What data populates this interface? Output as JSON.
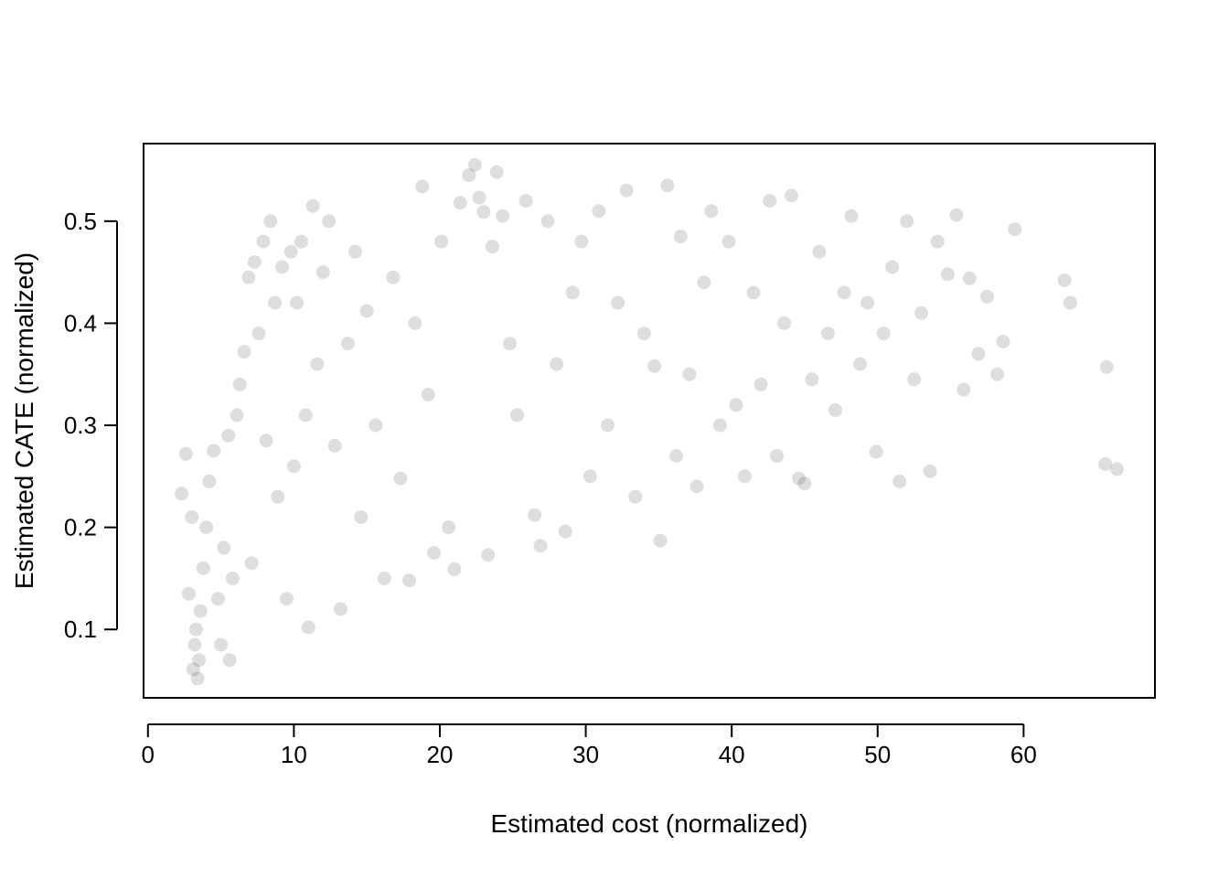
{
  "chart_data": {
    "type": "scatter",
    "title": "",
    "xlabel": "Estimated cost (normalized)",
    "ylabel": "Estimated CATE (normalized)",
    "xlim": [
      -0.3,
      69
    ],
    "ylim": [
      0.033,
      0.576
    ],
    "x_ticks": [
      0,
      10,
      20,
      30,
      40,
      50,
      60
    ],
    "y_ticks": [
      0.1,
      0.2,
      0.3,
      0.4,
      0.5
    ],
    "x_tick_labels": [
      "0",
      "10",
      "20",
      "30",
      "40",
      "50",
      "60"
    ],
    "y_tick_labels": [
      "0.1",
      "0.2",
      "0.3",
      "0.4",
      "0.5"
    ],
    "grid": false,
    "legend": "none",
    "point_color": "#000000",
    "point_opacity": 0.13,
    "series": [
      {
        "points": [
          [
            2.3,
            0.233
          ],
          [
            2.6,
            0.272
          ],
          [
            2.8,
            0.135
          ],
          [
            3.0,
            0.21
          ],
          [
            3.1,
            0.061
          ],
          [
            3.2,
            0.085
          ],
          [
            3.3,
            0.1
          ],
          [
            3.4,
            0.052
          ],
          [
            3.5,
            0.07
          ],
          [
            3.6,
            0.118
          ],
          [
            3.8,
            0.16
          ],
          [
            4.0,
            0.2
          ],
          [
            4.2,
            0.245
          ],
          [
            4.5,
            0.275
          ],
          [
            4.8,
            0.13
          ],
          [
            5.0,
            0.085
          ],
          [
            5.2,
            0.18
          ],
          [
            5.5,
            0.29
          ],
          [
            5.6,
            0.07
          ],
          [
            5.8,
            0.15
          ],
          [
            6.1,
            0.31
          ],
          [
            6.3,
            0.34
          ],
          [
            6.6,
            0.372
          ],
          [
            6.9,
            0.445
          ],
          [
            7.1,
            0.165
          ],
          [
            7.3,
            0.46
          ],
          [
            7.6,
            0.39
          ],
          [
            7.9,
            0.48
          ],
          [
            8.1,
            0.285
          ],
          [
            8.4,
            0.5
          ],
          [
            8.7,
            0.42
          ],
          [
            8.9,
            0.23
          ],
          [
            9.2,
            0.455
          ],
          [
            9.5,
            0.13
          ],
          [
            9.8,
            0.47
          ],
          [
            10.0,
            0.26
          ],
          [
            10.2,
            0.42
          ],
          [
            10.5,
            0.48
          ],
          [
            10.8,
            0.31
          ],
          [
            11.0,
            0.102
          ],
          [
            11.3,
            0.515
          ],
          [
            11.6,
            0.36
          ],
          [
            12.0,
            0.45
          ],
          [
            12.4,
            0.5
          ],
          [
            12.8,
            0.28
          ],
          [
            13.2,
            0.12
          ],
          [
            13.7,
            0.38
          ],
          [
            14.2,
            0.47
          ],
          [
            14.6,
            0.21
          ],
          [
            15.0,
            0.412
          ],
          [
            15.6,
            0.3
          ],
          [
            16.2,
            0.15
          ],
          [
            16.8,
            0.445
          ],
          [
            17.3,
            0.248
          ],
          [
            17.9,
            0.148
          ],
          [
            18.3,
            0.4
          ],
          [
            18.8,
            0.534
          ],
          [
            19.2,
            0.33
          ],
          [
            19.6,
            0.175
          ],
          [
            20.1,
            0.48
          ],
          [
            20.6,
            0.2
          ],
          [
            21.0,
            0.159
          ],
          [
            21.4,
            0.518
          ],
          [
            22.0,
            0.545
          ],
          [
            22.4,
            0.555
          ],
          [
            22.7,
            0.523
          ],
          [
            23.0,
            0.509
          ],
          [
            23.3,
            0.173
          ],
          [
            23.6,
            0.475
          ],
          [
            23.9,
            0.548
          ],
          [
            24.3,
            0.505
          ],
          [
            24.8,
            0.38
          ],
          [
            25.3,
            0.31
          ],
          [
            25.9,
            0.52
          ],
          [
            26.5,
            0.212
          ],
          [
            26.9,
            0.182
          ],
          [
            27.4,
            0.5
          ],
          [
            28.0,
            0.36
          ],
          [
            28.6,
            0.196
          ],
          [
            29.1,
            0.43
          ],
          [
            29.7,
            0.48
          ],
          [
            30.3,
            0.25
          ],
          [
            30.9,
            0.51
          ],
          [
            31.5,
            0.3
          ],
          [
            32.2,
            0.42
          ],
          [
            32.8,
            0.53
          ],
          [
            33.4,
            0.23
          ],
          [
            34.0,
            0.39
          ],
          [
            34.7,
            0.358
          ],
          [
            35.1,
            0.187
          ],
          [
            35.6,
            0.535
          ],
          [
            36.2,
            0.27
          ],
          [
            36.5,
            0.485
          ],
          [
            37.1,
            0.35
          ],
          [
            37.6,
            0.24
          ],
          [
            38.1,
            0.44
          ],
          [
            38.6,
            0.51
          ],
          [
            39.2,
            0.3
          ],
          [
            39.8,
            0.48
          ],
          [
            40.3,
            0.32
          ],
          [
            40.9,
            0.25
          ],
          [
            41.5,
            0.43
          ],
          [
            42.0,
            0.34
          ],
          [
            42.6,
            0.52
          ],
          [
            43.1,
            0.27
          ],
          [
            43.6,
            0.4
          ],
          [
            44.1,
            0.525
          ],
          [
            44.6,
            0.248
          ],
          [
            45.0,
            0.243
          ],
          [
            45.5,
            0.345
          ],
          [
            46.0,
            0.47
          ],
          [
            46.6,
            0.39
          ],
          [
            47.1,
            0.315
          ],
          [
            47.7,
            0.43
          ],
          [
            48.2,
            0.505
          ],
          [
            48.8,
            0.36
          ],
          [
            49.3,
            0.42
          ],
          [
            49.9,
            0.274
          ],
          [
            50.4,
            0.39
          ],
          [
            51.0,
            0.455
          ],
          [
            51.5,
            0.245
          ],
          [
            52.0,
            0.5
          ],
          [
            52.5,
            0.345
          ],
          [
            53.0,
            0.41
          ],
          [
            53.6,
            0.255
          ],
          [
            54.1,
            0.48
          ],
          [
            54.8,
            0.448
          ],
          [
            55.4,
            0.506
          ],
          [
            55.9,
            0.335
          ],
          [
            56.3,
            0.444
          ],
          [
            56.9,
            0.37
          ],
          [
            57.5,
            0.426
          ],
          [
            58.2,
            0.35
          ],
          [
            58.6,
            0.382
          ],
          [
            59.4,
            0.492
          ],
          [
            62.8,
            0.442
          ],
          [
            63.2,
            0.42
          ],
          [
            65.7,
            0.357
          ],
          [
            65.6,
            0.262
          ],
          [
            66.4,
            0.257
          ]
        ]
      }
    ]
  }
}
